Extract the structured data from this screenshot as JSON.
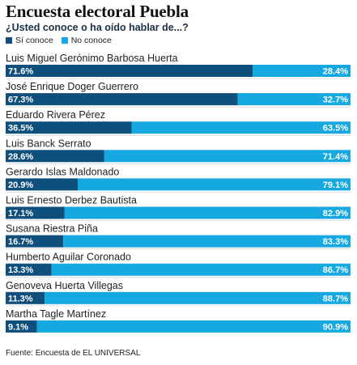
{
  "title": "Encuesta electoral Puebla",
  "subtitle": "¿Usted conoce o ha oído hablar de...?",
  "source": "Fuente: Encuesta de EL UNIVERSAL",
  "colors": {
    "known": "#0e4f7c",
    "unknown": "#16a8e0",
    "label_text": "#ffffff",
    "name_text": "#222222",
    "divider": "#cfd6dc"
  },
  "chart_data": {
    "type": "bar",
    "orientation": "horizontal",
    "stacked": true,
    "title": "Encuesta electoral Puebla",
    "subtitle": "¿Usted conoce o ha oído hablar de...?",
    "xlim": [
      0,
      100
    ],
    "legend_placement": "top-left",
    "categories": [
      "Luis Miguel Gerónimo Barbosa Huerta",
      "José Enrique Doger Guerrero",
      "Eduardo Rivera Pérez",
      "Luis Banck Serrato",
      "Gerardo Islas Maldonado",
      "Luis Ernesto Derbez Bautista",
      "Susana Riestra Piña",
      "Humberto Aguilar Coronado",
      "Genoveva Huerta Villegas",
      "Martha Tagle Martínez"
    ],
    "series": [
      {
        "name": "Sí conoce",
        "values": [
          71.6,
          67.3,
          36.5,
          28.6,
          20.9,
          17.1,
          16.7,
          13.3,
          11.3,
          9.1
        ],
        "labels": [
          "71.6%",
          "67.3%",
          "36.5%",
          "28.6%",
          "20.9%",
          "17.1%",
          "16.7%",
          "13.3%",
          "11.3%",
          "9.1%"
        ]
      },
      {
        "name": "No conoce",
        "values": [
          28.4,
          32.7,
          63.5,
          71.4,
          79.1,
          82.9,
          83.3,
          86.7,
          88.7,
          90.9
        ],
        "labels": [
          "28.4%",
          "32.7%",
          "63.5%",
          "71.4%",
          "79.1%",
          "82.9%",
          "83.3%",
          "86.7%",
          "88.7%",
          "90.9%"
        ]
      }
    ]
  }
}
